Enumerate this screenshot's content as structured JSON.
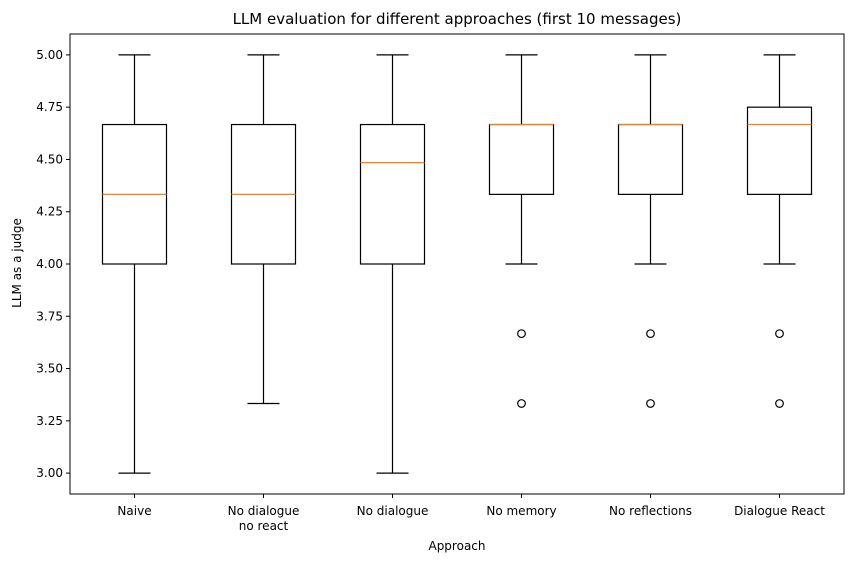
{
  "chart_data": {
    "type": "box",
    "title": "LLM evaluation for different approaches (first 10 messages)",
    "xlabel": "Approach",
    "ylabel": "LLM as a judge",
    "ylim": [
      2.9,
      5.1
    ],
    "yticks": [
      3.0,
      3.25,
      3.5,
      3.75,
      4.0,
      4.25,
      4.5,
      4.75,
      5.0
    ],
    "ytick_labels": [
      "3.00",
      "3.25",
      "3.50",
      "3.75",
      "4.00",
      "4.25",
      "4.50",
      "4.75",
      "5.00"
    ],
    "grid": false,
    "colors": {
      "box": "#000000",
      "median": "#ff7f0e",
      "background": "#ffffff"
    },
    "categories": [
      {
        "label": [
          "Naive"
        ],
        "whisker_low": 3.0,
        "q1": 4.0,
        "median": 4.333,
        "q3": 4.667,
        "whisker_high": 5.0,
        "outliers": []
      },
      {
        "label": [
          "No dialogue",
          "no react"
        ],
        "whisker_low": 3.333,
        "q1": 4.0,
        "median": 4.333,
        "q3": 4.667,
        "whisker_high": 5.0,
        "outliers": []
      },
      {
        "label": [
          "No dialogue"
        ],
        "whisker_low": 3.0,
        "q1": 4.0,
        "median": 4.485,
        "q3": 4.667,
        "whisker_high": 5.0,
        "outliers": []
      },
      {
        "label": [
          "No memory"
        ],
        "whisker_low": 4.0,
        "q1": 4.333,
        "median": 4.667,
        "q3": 4.667,
        "whisker_high": 5.0,
        "outliers": [
          3.667,
          3.333
        ]
      },
      {
        "label": [
          "No reflections"
        ],
        "whisker_low": 4.0,
        "q1": 4.333,
        "median": 4.667,
        "q3": 4.667,
        "whisker_high": 5.0,
        "outliers": [
          3.667,
          3.333
        ]
      },
      {
        "label": [
          "Dialogue React"
        ],
        "whisker_low": 4.0,
        "q1": 4.333,
        "median": 4.667,
        "q3": 4.75,
        "whisker_high": 5.0,
        "outliers": [
          3.667,
          3.333
        ]
      }
    ]
  }
}
